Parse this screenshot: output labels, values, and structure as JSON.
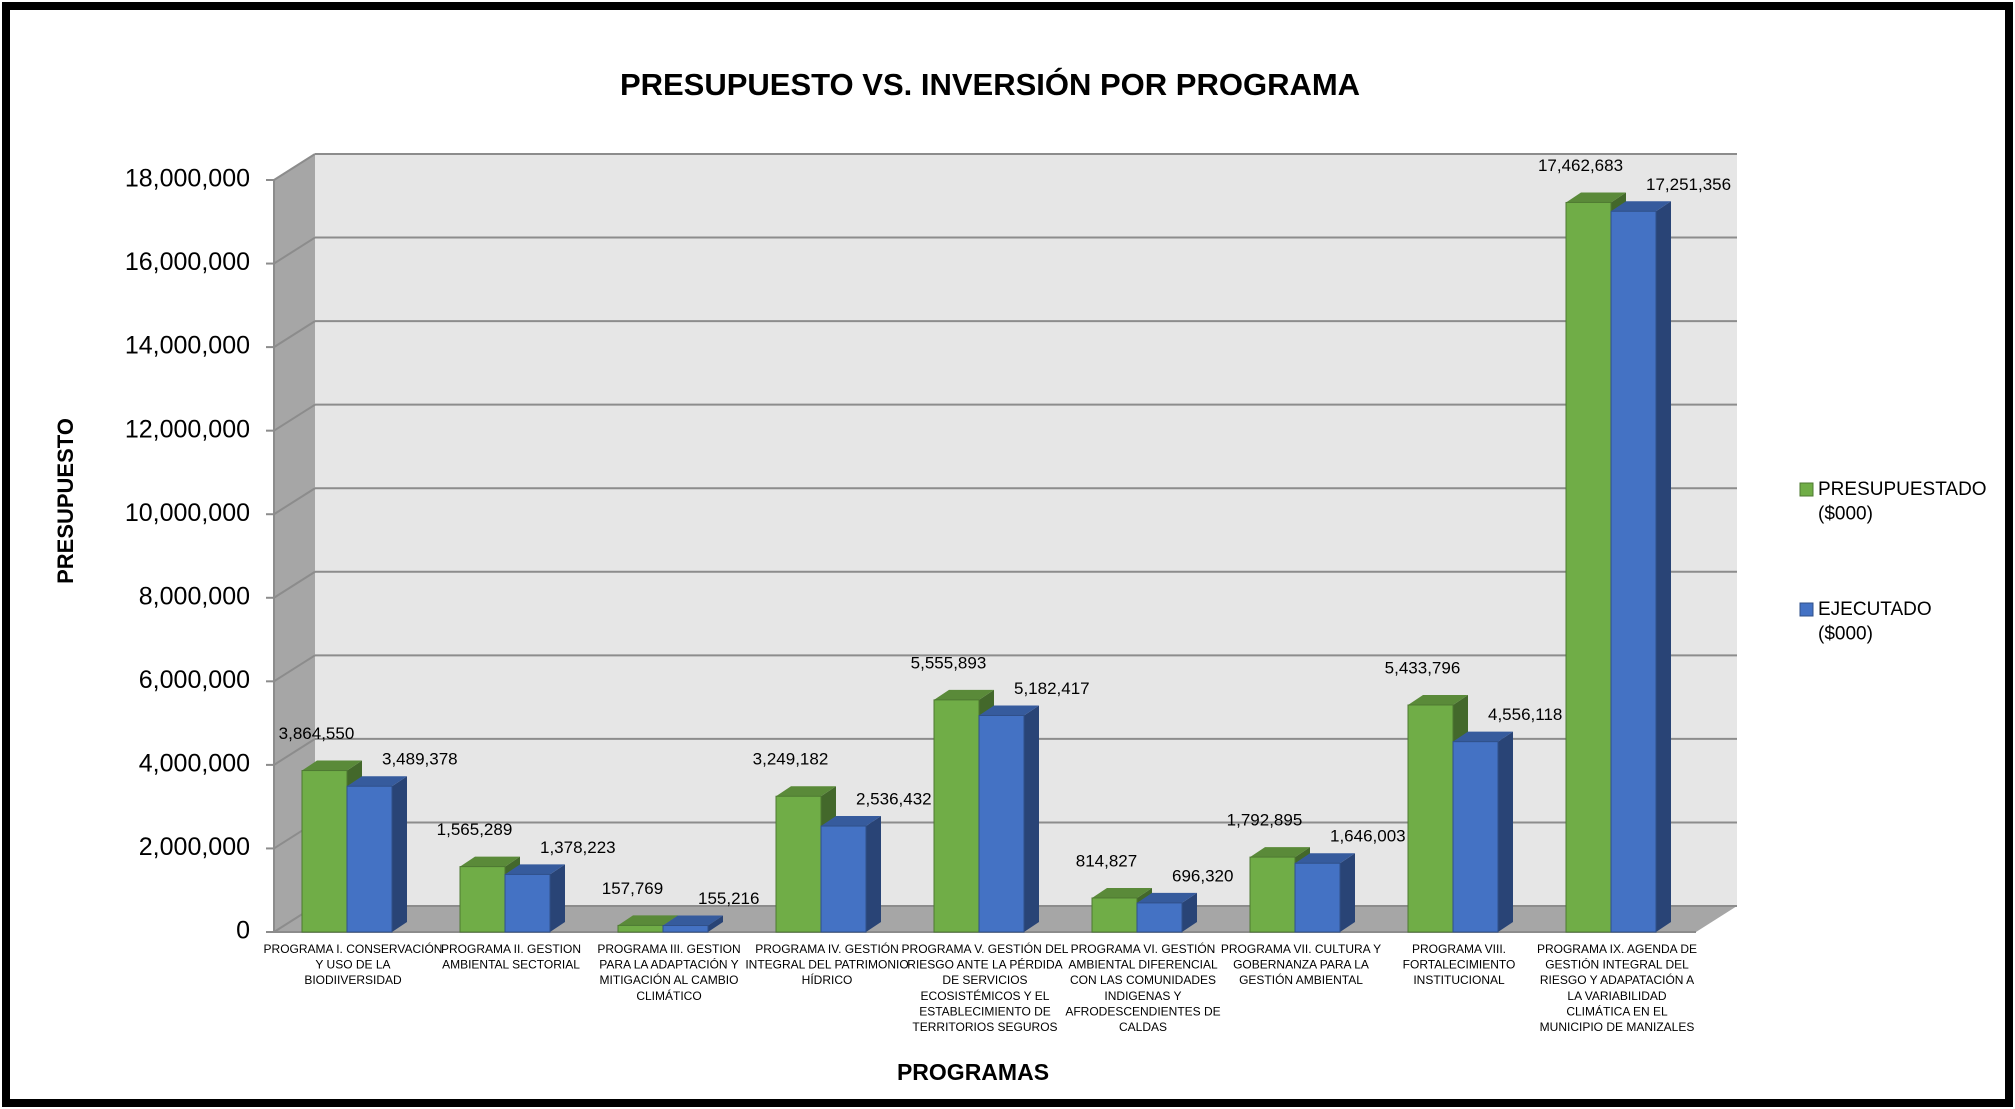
{
  "chart_data": {
    "type": "bar3d",
    "title": "PRESUPUESTO VS. INVERSIÓN POR PROGRAMA",
    "y_label": "PRESUPUESTO",
    "x_label": "PROGRAMAS",
    "categories": [
      "PROGRAMA I. CONSERVACIÓN Y USO DE LA BIODIIVERSIDAD",
      "PROGRAMA II. GESTION AMBIENTAL SECTORIAL",
      "PROGRAMA III. GESTION PARA LA ADAPTACIÓN Y MITIGACIÓN AL CAMBIO CLIMÁTICO",
      "PROGRAMA IV. GESTIÓN INTEGRAL DEL PATRIMONIO HÍDRICO",
      "PROGRAMA V. GESTIÓN DEL RIESGO ANTE LA PÉRDIDA DE SERVICIOS ECOSISTÉMICOS Y EL ESTABLECIMIENTO DE TERRITORIOS SEGUROS",
      "PROGRAMA VI. GESTIÓN AMBIENTAL DIFERENCIAL CON LAS COMUNIDADES INDIGENAS Y AFRODESCENDIENTES DE CALDAS",
      "PROGRAMA VII. CULTURA Y GOBERNANZA PARA LA GESTIÓN AMBIENTAL",
      "PROGRAMA VIII. FORTALECIMIENTO INSTITUCIONAL",
      "PROGRAMA IX. AGENDA DE GESTIÓN INTEGRAL DEL RIESGO Y ADAPATACIÓN A LA VARIABILIDAD CLIMÁTICA EN EL MUNICIPIO DE MANIZALES"
    ],
    "series": [
      {
        "name": "PRESUPUESTADO ($000)",
        "color": "#70ad47",
        "values": [
          3864550,
          1565289,
          157769,
          3249182,
          5555893,
          814827,
          1792895,
          5433796,
          17462683
        ],
        "value_labels": [
          "3,864,550",
          "1,565,289",
          "157,769",
          "3,249,182",
          "5,555,893",
          "814,827",
          "1,792,895",
          "5,433,796",
          "17,462,683"
        ]
      },
      {
        "name": "EJECUTADO ($000)",
        "color": "#4472c4",
        "values": [
          3489378,
          1378223,
          155216,
          2536432,
          5182417,
          696320,
          1646003,
          4556118,
          17251356
        ],
        "value_labels": [
          "3,489,378",
          "1,378,223",
          "155,216",
          "2,536,432",
          "5,182,417",
          "696,320",
          "1,646,003",
          "4,556,118",
          "17,251,356"
        ]
      }
    ],
    "ylim": [
      0,
      18000000
    ],
    "yticks": [
      0,
      {
        "value": 2000000,
        "label": "2,000,000"
      },
      {
        "value": 4000000,
        "label": "4,000,000"
      },
      {
        "value": 6000000,
        "label": "6,000,000"
      },
      {
        "value": 8000000,
        "label": "8,000,000"
      },
      {
        "value": 10000000,
        "label": "10,000,000"
      },
      {
        "value": 12000000,
        "label": "12,000,000"
      },
      {
        "value": 14000000,
        "label": "14,000,000"
      },
      {
        "value": 16000000,
        "label": "16,000,000"
      },
      {
        "value": 18000000,
        "label": "18,000,000"
      }
    ],
    "grid": true,
    "legend": "right"
  }
}
